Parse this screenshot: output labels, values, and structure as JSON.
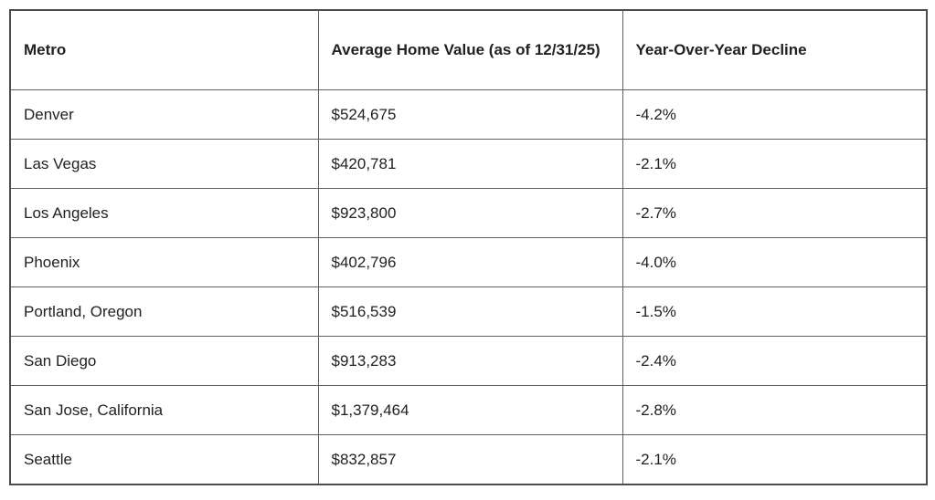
{
  "colors": {
    "background": "#ffffff",
    "border_outer": "#4d4d4d",
    "border_inner": "#5f5f5f",
    "text": "#212121"
  },
  "table": {
    "columns": [
      "Metro",
      "Average Home Value (as of 12/31/25)",
      "Year-Over-Year Decline"
    ],
    "rows": [
      [
        "Denver",
        "$524,675",
        "-4.2%"
      ],
      [
        "Las Vegas",
        "$420,781",
        "-2.1%"
      ],
      [
        "Los Angeles",
        "$923,800",
        "-2.7%"
      ],
      [
        "Phoenix",
        "$402,796",
        "-4.0%"
      ],
      [
        "Portland, Oregon",
        "$516,539",
        "-1.5%"
      ],
      [
        "San Diego",
        "$913,283",
        "-2.4%"
      ],
      [
        "San Jose, California",
        "$1,379,464",
        "-2.8%"
      ],
      [
        "Seattle",
        "$832,857",
        "-2.1%"
      ]
    ]
  },
  "chart_data": {
    "type": "table",
    "title": "",
    "columns": [
      "Metro",
      "Average Home Value (as of 12/31/25)",
      "Year-Over-Year Decline"
    ],
    "rows": [
      {
        "metro": "Denver",
        "average_home_value": 524675,
        "yoy_decline_pct": -4.2
      },
      {
        "metro": "Las Vegas",
        "average_home_value": 420781,
        "yoy_decline_pct": -2.1
      },
      {
        "metro": "Los Angeles",
        "average_home_value": 923800,
        "yoy_decline_pct": -2.7
      },
      {
        "metro": "Phoenix",
        "average_home_value": 402796,
        "yoy_decline_pct": -4.0
      },
      {
        "metro": "Portland, Oregon",
        "average_home_value": 516539,
        "yoy_decline_pct": -1.5
      },
      {
        "metro": "San Diego",
        "average_home_value": 913283,
        "yoy_decline_pct": -2.4
      },
      {
        "metro": "San Jose, California",
        "average_home_value": 1379464,
        "yoy_decline_pct": -2.8
      },
      {
        "metro": "Seattle",
        "average_home_value": 832857,
        "yoy_decline_pct": -2.1
      }
    ]
  }
}
